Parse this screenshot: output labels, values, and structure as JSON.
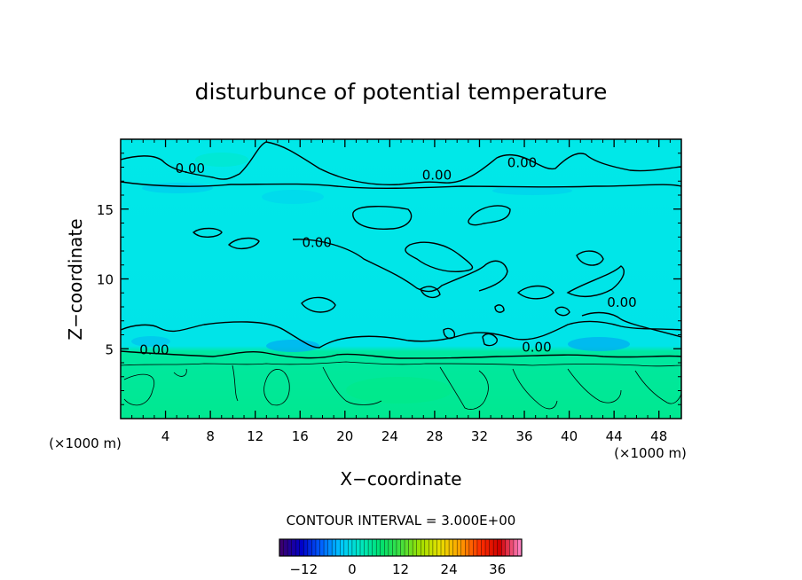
{
  "chart_data": {
    "type": "heatmap",
    "title": "disturbunce of potential temperature",
    "xlabel": "X−coordinate",
    "ylabel": "Z−coordinate",
    "x_unit": "(×1000 m)",
    "y_unit": "(×1000 m)",
    "xlim": [
      0,
      50
    ],
    "ylim": [
      0,
      20
    ],
    "x_ticks": [
      4,
      8,
      12,
      16,
      20,
      24,
      28,
      32,
      36,
      40,
      44,
      48
    ],
    "y_ticks": [
      5,
      10,
      15
    ],
    "contour_interval": "CONTOUR INTERVAL = 3.000E+00",
    "contour_labels": [
      {
        "text": "0.00",
        "x": 6.2,
        "z": 17.6
      },
      {
        "text": "0.00",
        "x": 28.2,
        "z": 17.1
      },
      {
        "text": "0.00",
        "x": 35.8,
        "z": 18.0
      },
      {
        "text": "0.00",
        "x": 17.5,
        "z": 12.3
      },
      {
        "text": "0.00",
        "x": 44.7,
        "z": 8.0
      },
      {
        "text": "0.00",
        "x": 3.0,
        "z": 4.6
      },
      {
        "text": "0.00",
        "x": 37.1,
        "z": 4.8
      }
    ],
    "colorbar": {
      "range": [
        -18,
        42
      ],
      "ticks": [
        -12,
        0,
        12,
        24,
        36
      ],
      "colors": [
        "#3a0070",
        "#0000c8",
        "#0060ff",
        "#00c8ff",
        "#00e8c0",
        "#00e070",
        "#40e040",
        "#a0e000",
        "#e8e000",
        "#ffa000",
        "#ff3000",
        "#d00000",
        "#ff80c0"
      ]
    },
    "field_colors": {
      "upper": "#00e8e8",
      "lower": "#00e890"
    }
  }
}
